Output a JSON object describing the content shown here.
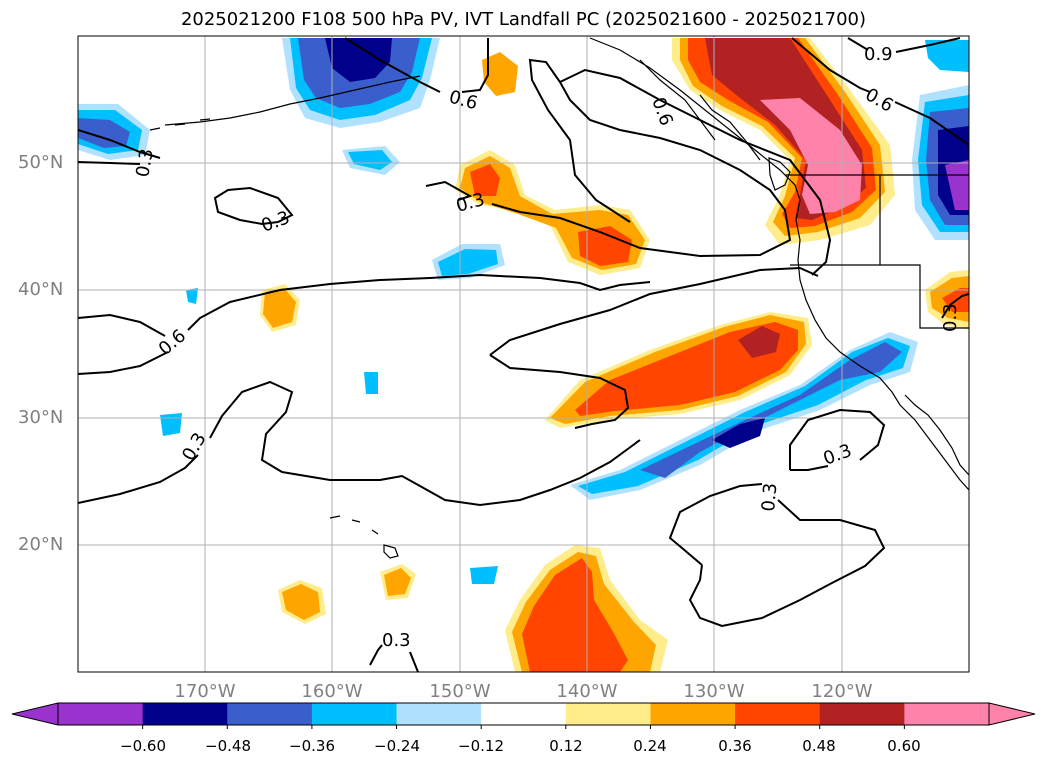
{
  "title": "2025021200 F108 500 hPa PV, IVT Landfall PC (2025021600 - 2025021700)",
  "lat_labels": [
    "50°N",
    "40°N",
    "30°N",
    "20°N"
  ],
  "lon_labels": [
    "170°W",
    "160°W",
    "150°W",
    "140°W",
    "130°W",
    "120°W"
  ],
  "contour_labels": [
    "0.6",
    "0.9",
    "0.6",
    "0.6",
    "0.3",
    "0.3",
    "0.3",
    "0.6",
    "0.3",
    "0.3",
    "0.3",
    "0.3",
    "0.3"
  ],
  "colorbar": {
    "ticks": [
      "−0.60",
      "−0.48",
      "−0.36",
      "−0.24",
      "−0.12",
      "0.12",
      "0.24",
      "0.36",
      "0.48",
      "0.60"
    ],
    "colors": [
      "#9a32cd",
      "#00008b",
      "#3a5fcd",
      "#00bfff",
      "#b0e2ff",
      "#ffffff",
      "#ffec8b",
      "#ffa500",
      "#ff4500",
      "#b22222",
      "#ff82ab"
    ]
  }
}
